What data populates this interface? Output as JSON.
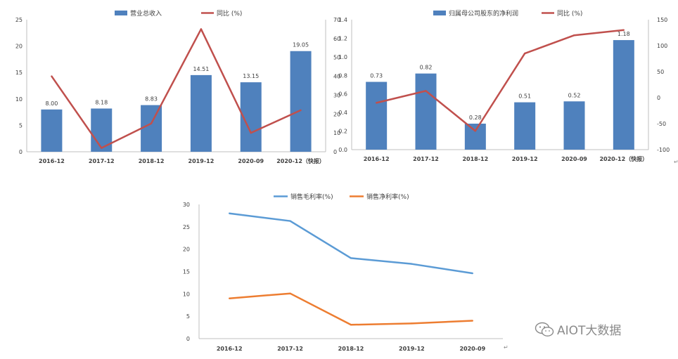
{
  "chart_data": [
    {
      "type": "bar+line",
      "title": "",
      "categories": [
        "2016-12",
        "2017-12",
        "2018-12",
        "2019-12",
        "2020-09",
        "2020-12（快报）"
      ],
      "series": [
        {
          "name": "营业总收入",
          "type": "bar",
          "axis": "left",
          "color": "#4f81bd",
          "values": [
            8.0,
            8.18,
            8.83,
            14.51,
            13.15,
            19.05
          ],
          "labels": [
            "8.00",
            "8.18",
            "8.83",
            "14.51",
            "13.15",
            "19.05"
          ]
        },
        {
          "name": "同比 (%)",
          "type": "line",
          "axis": "right",
          "color": "#c0504d",
          "values": [
            40,
            2,
            15,
            65,
            10,
            22
          ]
        }
      ],
      "y_left": {
        "min": 0,
        "max": 25,
        "ticks": [
          "0",
          "5",
          "10",
          "15",
          "20",
          "25"
        ]
      },
      "y_right": {
        "min": 0,
        "max": 70,
        "ticks": [
          "0",
          "10",
          "20",
          "30",
          "40",
          "50",
          "60",
          "70"
        ]
      }
    },
    {
      "type": "bar+line",
      "title": "",
      "categories": [
        "2016-12",
        "2017-12",
        "2018-12",
        "2019-12",
        "2020-09",
        "2020-12（快报）"
      ],
      "series": [
        {
          "name": "归属母公司股东的净利润",
          "type": "bar",
          "axis": "left",
          "color": "#4f81bd",
          "values": [
            0.73,
            0.82,
            0.28,
            0.51,
            0.52,
            1.18
          ],
          "labels": [
            "0.73",
            "0.82",
            "0.28",
            "0.51",
            "0.52",
            "1.18"
          ]
        },
        {
          "name": "同比 (%)",
          "type": "line",
          "axis": "right",
          "color": "#c0504d",
          "values": [
            -10,
            13,
            -64,
            85,
            120,
            130
          ]
        }
      ],
      "y_left": {
        "min": 0,
        "max": 1.4,
        "ticks": [
          "0.0",
          "0.2",
          "0.4",
          "0.6",
          "0.8",
          "1.0",
          "1.2",
          "1.4"
        ]
      },
      "y_right": {
        "min": -100,
        "max": 150,
        "ticks": [
          "-100",
          "-50",
          "0",
          "50",
          "100",
          "150"
        ]
      }
    },
    {
      "type": "line",
      "title": "",
      "categories": [
        "2016-12",
        "2017-12",
        "2018-12",
        "2019-12",
        "2020-09"
      ],
      "series": [
        {
          "name": "销售毛利率(%)",
          "color": "#5b9bd5",
          "values": [
            28.0,
            26.3,
            18.0,
            16.7,
            14.6
          ]
        },
        {
          "name": "销售净利率(%)",
          "color": "#ed7d31",
          "values": [
            9.0,
            10.1,
            3.1,
            3.4,
            4.0
          ]
        }
      ],
      "y_left": {
        "min": 0,
        "max": 30,
        "ticks": [
          "0",
          "5",
          "10",
          "15",
          "20",
          "25",
          "30"
        ]
      }
    }
  ],
  "watermark": {
    "text": "AIOT大数据",
    "icon": "wechat-icon"
  },
  "marks": {
    "paragraph_mark": "↵"
  }
}
